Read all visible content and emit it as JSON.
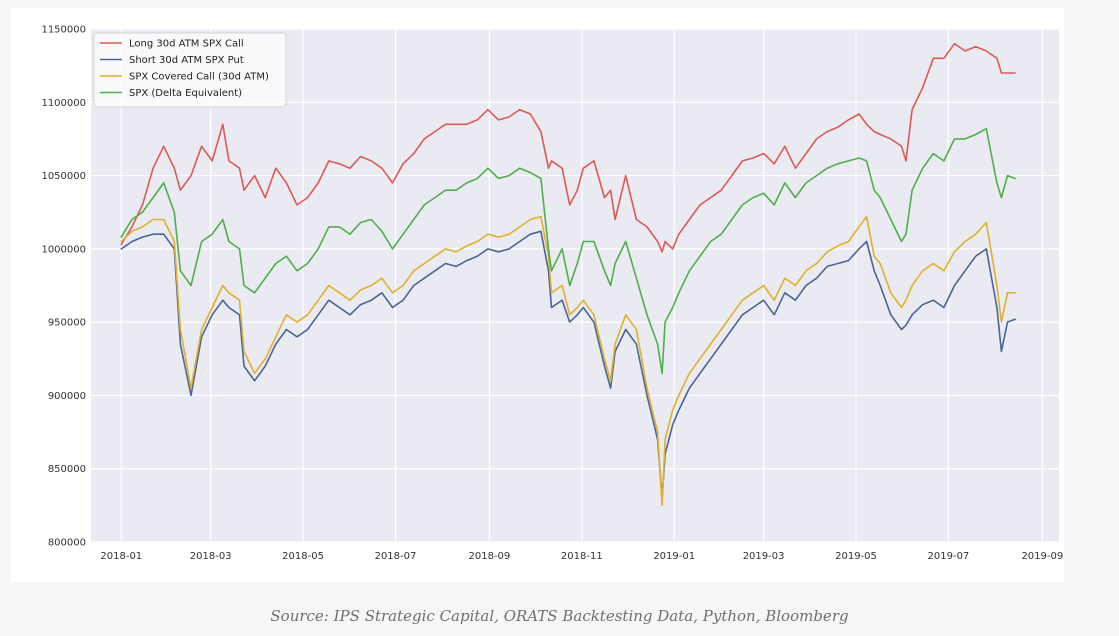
{
  "caption": "Source: IPS Strategic Capital, ORATS Backtesting Data, Python, Bloomberg",
  "colors": {
    "page_background": "#f4f6f7",
    "plot_background": "#eaeaf2",
    "grid": "#ffffff"
  },
  "chart_data": {
    "type": "line",
    "title": "",
    "xlabel": "",
    "ylabel": "",
    "grid": true,
    "legend_position": "top-left",
    "x_axis_type": "date",
    "xlim": [
      "2017-12-12",
      "2019-09-12"
    ],
    "ylim": [
      800000,
      1150000
    ],
    "x_ticks": [
      "2018-01",
      "2018-03",
      "2018-05",
      "2018-07",
      "2018-09",
      "2018-11",
      "2019-01",
      "2019-03",
      "2019-05",
      "2019-07",
      "2019-09"
    ],
    "y_ticks": [
      "1150000",
      "1100000",
      "1050000",
      "1000000",
      "950000",
      "900000",
      "850000",
      "800000"
    ],
    "x": [
      "2018-01-01",
      "2018-01-08",
      "2018-01-15",
      "2018-01-22",
      "2018-01-29",
      "2018-02-05",
      "2018-02-09",
      "2018-02-16",
      "2018-02-23",
      "2018-03-02",
      "2018-03-09",
      "2018-03-13",
      "2018-03-20",
      "2018-03-23",
      "2018-03-30",
      "2018-04-06",
      "2018-04-13",
      "2018-04-20",
      "2018-04-27",
      "2018-05-04",
      "2018-05-11",
      "2018-05-18",
      "2018-05-25",
      "2018-06-01",
      "2018-06-08",
      "2018-06-15",
      "2018-06-22",
      "2018-06-29",
      "2018-07-06",
      "2018-07-13",
      "2018-07-20",
      "2018-07-27",
      "2018-08-03",
      "2018-08-10",
      "2018-08-17",
      "2018-08-24",
      "2018-08-31",
      "2018-09-07",
      "2018-09-14",
      "2018-09-21",
      "2018-09-28",
      "2018-10-05",
      "2018-10-10",
      "2018-10-12",
      "2018-10-19",
      "2018-10-24",
      "2018-10-29",
      "2018-11-02",
      "2018-11-09",
      "2018-11-16",
      "2018-11-20",
      "2018-11-23",
      "2018-11-30",
      "2018-12-07",
      "2018-12-14",
      "2018-12-21",
      "2018-12-24",
      "2018-12-26",
      "2018-12-31",
      "2019-01-04",
      "2019-01-11",
      "2019-01-18",
      "2019-01-25",
      "2019-02-01",
      "2019-02-08",
      "2019-02-15",
      "2019-02-22",
      "2019-03-01",
      "2019-03-08",
      "2019-03-15",
      "2019-03-22",
      "2019-03-29",
      "2019-04-05",
      "2019-04-12",
      "2019-04-19",
      "2019-04-26",
      "2019-05-03",
      "2019-05-08",
      "2019-05-13",
      "2019-05-17",
      "2019-05-24",
      "2019-05-31",
      "2019-06-03",
      "2019-06-07",
      "2019-06-14",
      "2019-06-21",
      "2019-06-28",
      "2019-07-05",
      "2019-07-12",
      "2019-07-19",
      "2019-07-26",
      "2019-08-02",
      "2019-08-05",
      "2019-08-09",
      "2019-08-14"
    ],
    "series": [
      {
        "name": "Long 30d ATM SPX Call",
        "color": "#dd5a54",
        "values": [
          1003000,
          1015000,
          1030000,
          1055000,
          1070000,
          1055000,
          1040000,
          1050000,
          1070000,
          1060000,
          1085000,
          1060000,
          1055000,
          1040000,
          1050000,
          1035000,
          1055000,
          1045000,
          1030000,
          1035000,
          1045000,
          1060000,
          1058000,
          1055000,
          1063000,
          1060000,
          1055000,
          1045000,
          1058000,
          1065000,
          1075000,
          1080000,
          1085000,
          1085000,
          1085000,
          1088000,
          1095000,
          1088000,
          1090000,
          1095000,
          1092000,
          1080000,
          1055000,
          1060000,
          1055000,
          1030000,
          1040000,
          1055000,
          1060000,
          1035000,
          1040000,
          1020000,
          1050000,
          1020000,
          1015000,
          1005000,
          998000,
          1005000,
          1000000,
          1010000,
          1020000,
          1030000,
          1035000,
          1040000,
          1050000,
          1060000,
          1062000,
          1065000,
          1058000,
          1070000,
          1055000,
          1065000,
          1075000,
          1080000,
          1083000,
          1088000,
          1092000,
          1085000,
          1080000,
          1078000,
          1075000,
          1070000,
          1060000,
          1095000,
          1110000,
          1130000,
          1130000,
          1140000,
          1135000,
          1138000,
          1135000,
          1130000,
          1120000,
          1120000,
          1120000
        ]
      },
      {
        "name": "Short 30d ATM SPX Put",
        "color": "#4a6498",
        "values": [
          1000000,
          1005000,
          1008000,
          1010000,
          1010000,
          1000000,
          935000,
          900000,
          940000,
          955000,
          965000,
          960000,
          955000,
          920000,
          910000,
          920000,
          935000,
          945000,
          940000,
          945000,
          955000,
          965000,
          960000,
          955000,
          962000,
          965000,
          970000,
          960000,
          965000,
          975000,
          980000,
          985000,
          990000,
          988000,
          992000,
          995000,
          1000000,
          998000,
          1000000,
          1005000,
          1010000,
          1012000,
          985000,
          960000,
          965000,
          950000,
          955000,
          960000,
          950000,
          920000,
          905000,
          930000,
          945000,
          935000,
          900000,
          870000,
          830000,
          860000,
          880000,
          890000,
          905000,
          915000,
          925000,
          935000,
          945000,
          955000,
          960000,
          965000,
          955000,
          970000,
          965000,
          975000,
          980000,
          988000,
          990000,
          992000,
          1000000,
          1005000,
          985000,
          975000,
          955000,
          945000,
          948000,
          955000,
          962000,
          965000,
          960000,
          975000,
          985000,
          995000,
          1000000,
          960000,
          930000,
          950000,
          952000
        ]
      },
      {
        "name": "SPX Covered Call (30d ATM)",
        "color": "#e0b02c",
        "values": [
          1005000,
          1012000,
          1015000,
          1020000,
          1020000,
          1005000,
          945000,
          905000,
          945000,
          960000,
          975000,
          970000,
          965000,
          930000,
          915000,
          925000,
          940000,
          955000,
          950000,
          955000,
          965000,
          975000,
          970000,
          965000,
          972000,
          975000,
          980000,
          970000,
          975000,
          985000,
          990000,
          995000,
          1000000,
          998000,
          1002000,
          1005000,
          1010000,
          1008000,
          1010000,
          1015000,
          1020000,
          1022000,
          995000,
          970000,
          975000,
          955000,
          960000,
          965000,
          955000,
          925000,
          910000,
          935000,
          955000,
          945000,
          905000,
          875000,
          825000,
          870000,
          890000,
          900000,
          915000,
          925000,
          935000,
          945000,
          955000,
          965000,
          970000,
          975000,
          965000,
          980000,
          975000,
          985000,
          990000,
          998000,
          1002000,
          1005000,
          1015000,
          1022000,
          995000,
          990000,
          970000,
          960000,
          965000,
          975000,
          985000,
          990000,
          985000,
          998000,
          1005000,
          1010000,
          1018000,
          975000,
          950000,
          970000,
          970000
        ]
      },
      {
        "name": "SPX (Delta Equivalent)",
        "color": "#4faf4a",
        "values": [
          1008000,
          1020000,
          1025000,
          1035000,
          1045000,
          1025000,
          985000,
          975000,
          1005000,
          1010000,
          1020000,
          1005000,
          1000000,
          975000,
          970000,
          980000,
          990000,
          995000,
          985000,
          990000,
          1000000,
          1015000,
          1015000,
          1010000,
          1018000,
          1020000,
          1012000,
          1000000,
          1010000,
          1020000,
          1030000,
          1035000,
          1040000,
          1040000,
          1045000,
          1048000,
          1055000,
          1048000,
          1050000,
          1055000,
          1052000,
          1048000,
          1000000,
          985000,
          1000000,
          975000,
          990000,
          1005000,
          1005000,
          985000,
          975000,
          990000,
          1005000,
          980000,
          955000,
          935000,
          915000,
          950000,
          960000,
          970000,
          985000,
          995000,
          1005000,
          1010000,
          1020000,
          1030000,
          1035000,
          1038000,
          1030000,
          1045000,
          1035000,
          1045000,
          1050000,
          1055000,
          1058000,
          1060000,
          1062000,
          1060000,
          1040000,
          1035000,
          1020000,
          1005000,
          1010000,
          1040000,
          1055000,
          1065000,
          1060000,
          1075000,
          1075000,
          1078000,
          1082000,
          1045000,
          1035000,
          1050000,
          1048000
        ]
      }
    ]
  }
}
